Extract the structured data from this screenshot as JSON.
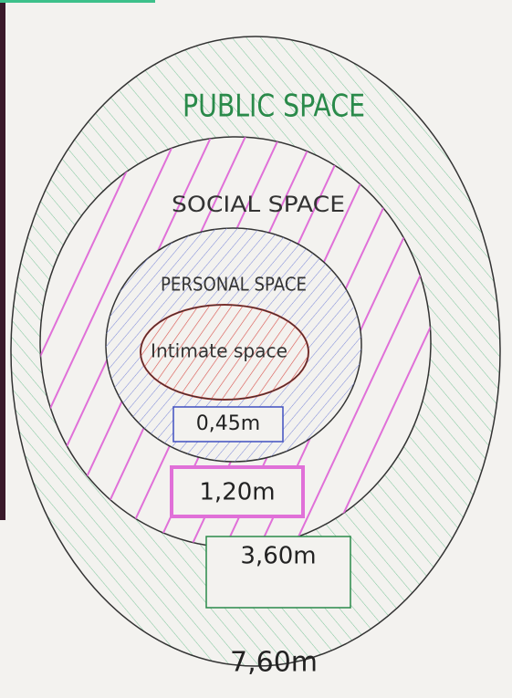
{
  "zones": [
    {
      "name": "PUBLIC SPACE",
      "distance": "7,60m"
    },
    {
      "name": "SOCIAL SPACE",
      "distance": "3,60m"
    },
    {
      "name": "PERSONAL SPACE",
      "distance": "1,20m"
    },
    {
      "name": "Intimate space",
      "distance": "0,45m"
    }
  ]
}
